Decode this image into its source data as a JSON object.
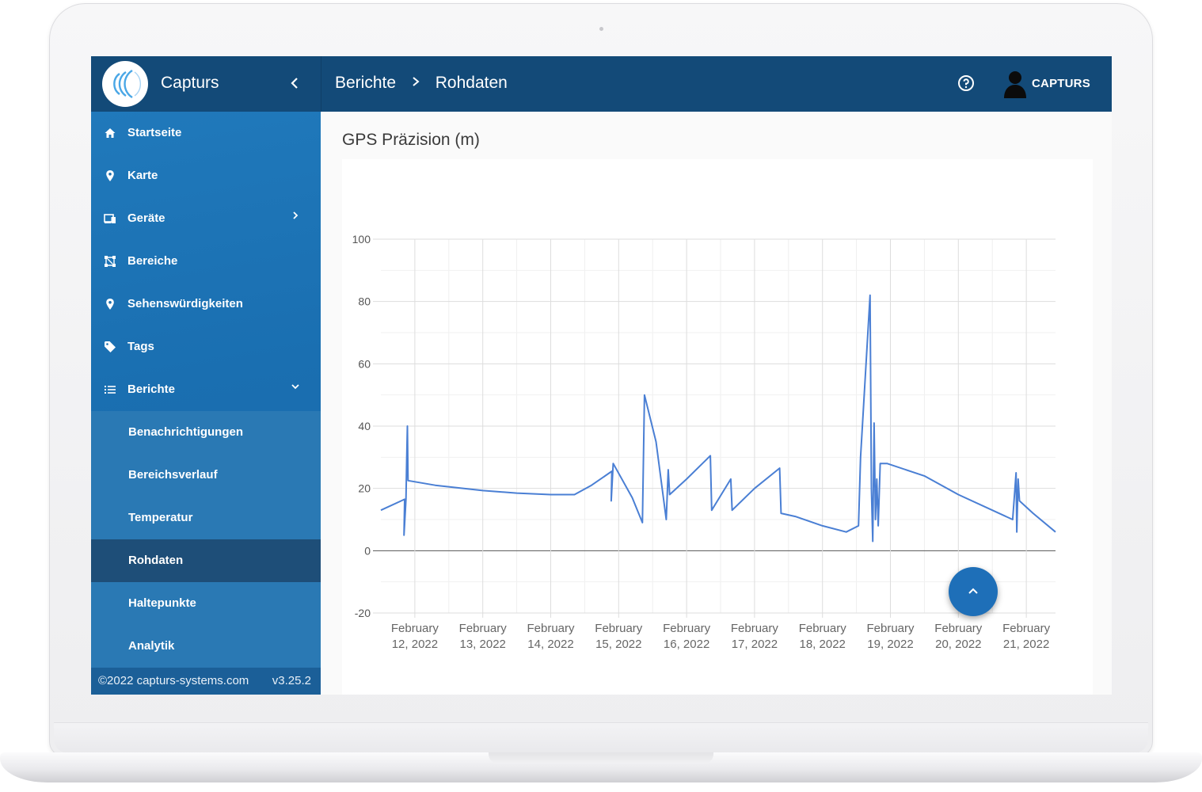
{
  "app": {
    "brand_name": "Capturs",
    "collapse_icon": "chevron-left-icon"
  },
  "header": {
    "breadcrumb": [
      "Berichte",
      "Rohdaten"
    ],
    "help_icon": "help-circle-icon",
    "user_name": "CAPTURS"
  },
  "sidebar": {
    "items": [
      {
        "label": "Startseite",
        "icon": "home-icon"
      },
      {
        "label": "Karte",
        "icon": "map-pin-icon"
      },
      {
        "label": "Geräte",
        "icon": "devices-icon",
        "has_submenu": true
      },
      {
        "label": "Bereiche",
        "icon": "area-icon"
      },
      {
        "label": "Sehenswürdigkeiten",
        "icon": "map-pin-icon"
      },
      {
        "label": "Tags",
        "icon": "tag-icon"
      },
      {
        "label": "Berichte",
        "icon": "list-icon",
        "expanded": true
      }
    ],
    "subitems": [
      {
        "label": "Benachrichtigungen"
      },
      {
        "label": "Bereichsverlauf"
      },
      {
        "label": "Temperatur"
      },
      {
        "label": "Rohdaten",
        "active": true
      },
      {
        "label": "Haltepunkte"
      },
      {
        "label": "Analytik"
      }
    ],
    "footer": {
      "copyright": "©2022 capturs-systems.com",
      "version": "v3.25.2"
    }
  },
  "main": {
    "title": "GPS Präzision (m)"
  },
  "colors": {
    "topbar": "#134a78",
    "sidebar": "#1a6fb1",
    "line": "#4a7fd4",
    "fab": "#1e6fb8"
  },
  "chart_data": {
    "type": "line",
    "title": "GPS Präzision (m)",
    "xlabel": "",
    "ylabel": "",
    "ylim": [
      -20,
      100
    ],
    "y_ticks": [
      100,
      80,
      60,
      40,
      20,
      0,
      -20
    ],
    "x_range": [
      11.5,
      21.43
    ],
    "x_ticks": [
      {
        "value": 12,
        "label": [
          "February",
          "12, 2022"
        ]
      },
      {
        "value": 13,
        "label": [
          "February",
          "13, 2022"
        ]
      },
      {
        "value": 14,
        "label": [
          "February",
          "14, 2022"
        ]
      },
      {
        "value": 15,
        "label": [
          "February",
          "15, 2022"
        ]
      },
      {
        "value": 16,
        "label": [
          "February",
          "16, 2022"
        ]
      },
      {
        "value": 17,
        "label": [
          "February",
          "17, 2022"
        ]
      },
      {
        "value": 18,
        "label": [
          "February",
          "18, 2022"
        ]
      },
      {
        "value": 19,
        "label": [
          "February",
          "19, 2022"
        ]
      },
      {
        "value": 20,
        "label": [
          "February",
          "20, 2022"
        ]
      },
      {
        "value": 21,
        "label": [
          "February",
          "21, 2022"
        ]
      }
    ],
    "grid": true,
    "series": [
      {
        "name": "GPS Präzision",
        "points": [
          [
            11.5,
            13
          ],
          [
            11.85,
            16.5
          ],
          [
            11.84,
            5
          ],
          [
            11.87,
            16.5
          ],
          [
            11.88,
            29
          ],
          [
            11.89,
            40
          ],
          [
            11.9,
            22.5
          ],
          [
            12.3,
            21
          ],
          [
            13.0,
            19.3
          ],
          [
            13.5,
            18.5
          ],
          [
            14.0,
            18
          ],
          [
            14.35,
            18
          ],
          [
            14.6,
            21
          ],
          [
            14.9,
            25.5
          ],
          [
            14.89,
            16
          ],
          [
            14.92,
            28
          ],
          [
            15.2,
            17
          ],
          [
            15.35,
            9
          ],
          [
            15.38,
            50
          ],
          [
            15.55,
            35
          ],
          [
            15.7,
            10
          ],
          [
            15.73,
            26
          ],
          [
            15.75,
            18
          ],
          [
            16.0,
            23
          ],
          [
            16.35,
            30.5
          ],
          [
            16.37,
            13
          ],
          [
            16.65,
            23
          ],
          [
            16.67,
            13
          ],
          [
            17.0,
            20
          ],
          [
            17.37,
            26.5
          ],
          [
            17.39,
            12
          ],
          [
            17.6,
            11
          ],
          [
            18.0,
            8
          ],
          [
            18.35,
            6
          ],
          [
            18.53,
            8
          ],
          [
            18.56,
            30
          ],
          [
            18.7,
            82
          ],
          [
            18.72,
            20
          ],
          [
            18.74,
            3
          ],
          [
            18.76,
            41
          ],
          [
            18.78,
            10
          ],
          [
            18.8,
            23
          ],
          [
            18.82,
            8
          ],
          [
            18.85,
            28
          ],
          [
            18.95,
            28
          ],
          [
            19.5,
            24
          ],
          [
            20.0,
            18
          ],
          [
            20.8,
            10
          ],
          [
            20.85,
            25
          ],
          [
            20.86,
            6
          ],
          [
            20.88,
            23
          ],
          [
            20.9,
            16
          ],
          [
            21.1,
            12
          ],
          [
            21.43,
            6
          ]
        ]
      }
    ]
  }
}
